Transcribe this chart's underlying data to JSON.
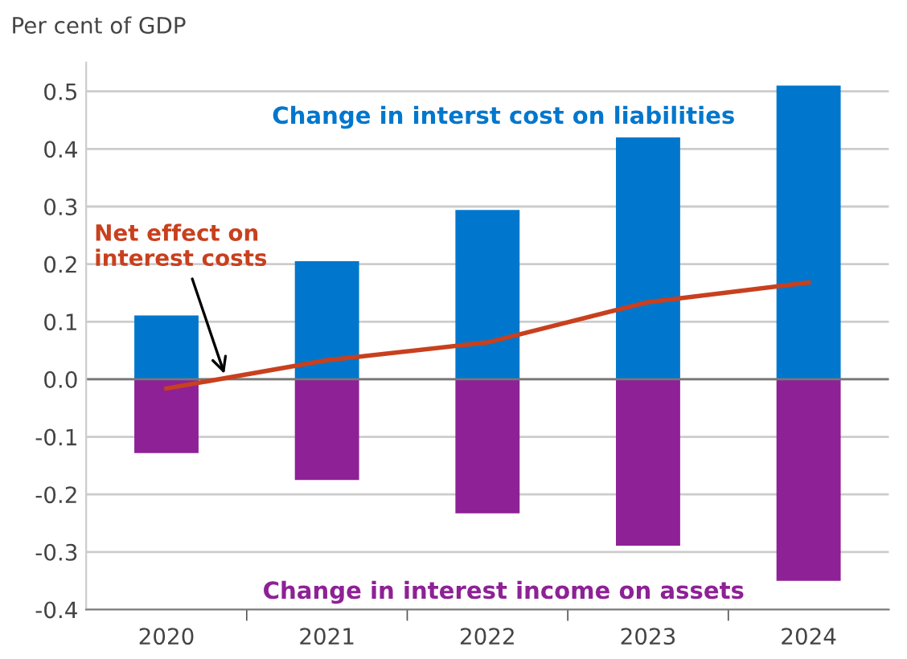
{
  "chart_data": {
    "type": "bar",
    "stacked": true,
    "ylabel": "Per cent of GDP",
    "categories": [
      "2020",
      "2021",
      "2022",
      "2023",
      "2024"
    ],
    "series": [
      {
        "name": "Change in interst cost on liabilities",
        "color": "#0077cc",
        "values": [
          0.111,
          0.205,
          0.294,
          0.42,
          0.51
        ]
      },
      {
        "name": "Change in interest income on assets",
        "color": "#8e2196",
        "values": [
          -0.128,
          -0.175,
          -0.233,
          -0.289,
          -0.35
        ]
      },
      {
        "name": "Net effect on\ninterest costs",
        "type": "line",
        "color": "#c8401e",
        "values": [
          -0.016,
          0.033,
          0.064,
          0.134,
          0.168
        ]
      }
    ],
    "ylim": [
      -0.4,
      0.55
    ],
    "yticks": [
      -0.4,
      -0.3,
      -0.2,
      -0.1,
      {
        "value": 0,
        "label": "0.0"
      },
      0.1,
      0.2,
      0.3,
      0.4,
      0.5
    ],
    "grid": "y",
    "legend": false
  }
}
